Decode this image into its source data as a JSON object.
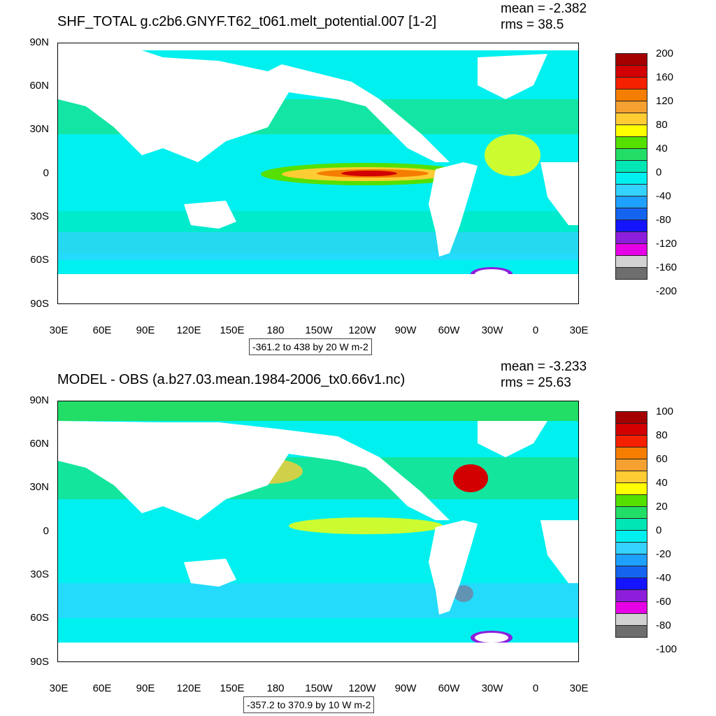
{
  "panels": [
    {
      "title": "SHF_TOTAL g.c2b6.GNYF.T62_t061.melt_potential.007 [1-2]",
      "mean": "mean = -2.382",
      "rms": "rms = 38.5",
      "range_note": "-361.2 to 438 by 20 W m-2",
      "colorbar_labels": [
        "200",
        "160",
        "120",
        "80",
        "40",
        "0",
        "-40",
        "-80",
        "-120",
        "-160",
        "-200"
      ]
    },
    {
      "title": "MODEL - OBS (a.b27.03.mean.1984-2006_tx0.66v1.nc)",
      "mean": "mean = -3.233",
      "rms": "rms = 25.63",
      "range_note": "-357.2 to 370.9 by 10 W m-2",
      "colorbar_labels": [
        "100",
        "80",
        "60",
        "40",
        "20",
        "0",
        "-20",
        "-40",
        "-60",
        "-80",
        "-100"
      ]
    }
  ],
  "lat_labels": [
    "90N",
    "60N",
    "30N",
    "0",
    "30S",
    "60S",
    "90S"
  ],
  "lon_labels": [
    "30E",
    "60E",
    "90E",
    "120E",
    "150E",
    "180",
    "150W",
    "120W",
    "90W",
    "60W",
    "30W",
    "0",
    "30E"
  ],
  "colorbar_colors": [
    "#a50000",
    "#d20000",
    "#f52000",
    "#f57d00",
    "#f5a030",
    "#ffcc33",
    "#ffff00",
    "#55e000",
    "#22dd66",
    "#00e6b4",
    "#00f0f0",
    "#33d2ff",
    "#1ea0ff",
    "#1464f0",
    "#1414ff",
    "#8c1edc",
    "#e600e6",
    "#d2d2d2",
    "#6e6e6e"
  ]
}
